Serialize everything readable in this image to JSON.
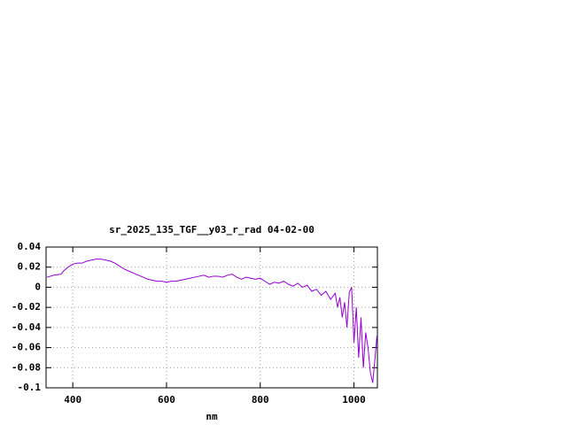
{
  "chart_data": {
    "type": "line",
    "title": "sr_2025_135_TGF__y03_r_rad 04-02-00",
    "x_label": "nm",
    "x": [
      345,
      360,
      375,
      380,
      390,
      400,
      410,
      420,
      430,
      440,
      450,
      460,
      470,
      480,
      490,
      500,
      510,
      520,
      530,
      540,
      550,
      560,
      570,
      580,
      590,
      600,
      610,
      620,
      630,
      640,
      650,
      660,
      670,
      680,
      690,
      700,
      710,
      720,
      730,
      740,
      750,
      760,
      770,
      780,
      790,
      800,
      810,
      820,
      830,
      840,
      850,
      860,
      870,
      880,
      890,
      900,
      910,
      920,
      930,
      940,
      950,
      960,
      965,
      970,
      975,
      980,
      985,
      990,
      995,
      1000,
      1005,
      1010,
      1015,
      1020,
      1025,
      1030,
      1035,
      1040,
      1045,
      1049
    ],
    "series": [
      {
        "name": "sr_2025_135_TGF__y03_r_rad 04-02-00",
        "color": "#9400d3",
        "values": [
          0.01,
          0.012,
          0.013,
          0.016,
          0.02,
          0.023,
          0.024,
          0.024,
          0.026,
          0.027,
          0.028,
          0.028,
          0.027,
          0.026,
          0.024,
          0.021,
          0.018,
          0.016,
          0.014,
          0.012,
          0.01,
          0.008,
          0.007,
          0.006,
          0.006,
          0.005,
          0.006,
          0.006,
          0.007,
          0.008,
          0.009,
          0.01,
          0.011,
          0.012,
          0.01,
          0.011,
          0.011,
          0.01,
          0.012,
          0.013,
          0.01,
          0.008,
          0.01,
          0.009,
          0.008,
          0.009,
          0.006,
          0.003,
          0.005,
          0.004,
          0.006,
          0.003,
          0.001,
          0.004,
          0.0,
          0.002,
          -0.004,
          -0.002,
          -0.008,
          -0.004,
          -0.012,
          -0.006,
          -0.02,
          -0.01,
          -0.03,
          -0.015,
          -0.04,
          -0.005,
          0.0,
          -0.055,
          -0.02,
          -0.07,
          -0.03,
          -0.08,
          -0.045,
          -0.06,
          -0.085,
          -0.095,
          -0.07,
          -0.048
        ]
      }
    ],
    "xlim": [
      343,
      1050
    ],
    "ylim": [
      -0.1,
      0.04
    ],
    "xticks": [
      400,
      600,
      800,
      1000
    ],
    "yticks": [
      0.04,
      0.02,
      0,
      -0.02,
      -0.04,
      -0.06,
      -0.08,
      -0.1
    ],
    "grid": true
  }
}
